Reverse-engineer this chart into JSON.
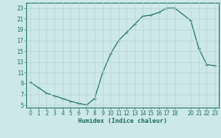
{
  "x": [
    0,
    1,
    2,
    3,
    4,
    5,
    6,
    7,
    8,
    9,
    10,
    11,
    12,
    13,
    14,
    15,
    16,
    17,
    18,
    20,
    21,
    22,
    23
  ],
  "y": [
    9.2,
    8.2,
    7.2,
    6.7,
    6.2,
    5.7,
    5.3,
    5.0,
    6.2,
    11.0,
    14.5,
    17.0,
    18.5,
    20.0,
    21.5,
    21.7,
    22.2,
    23.0,
    23.0,
    20.7,
    15.5,
    12.5,
    12.3
  ],
  "xlabel": "Humidex (Indice chaleur)",
  "line_color": "#1a6b5a",
  "bg_color": "#cce8ea",
  "grid_color": "#b8d4d6",
  "tick_color": "#1a6b5a",
  "spine_color": "#1a6b5a",
  "xlim": [
    -0.5,
    23.5
  ],
  "ylim": [
    4.5,
    24.0
  ],
  "yticks": [
    5,
    7,
    9,
    11,
    13,
    15,
    17,
    19,
    21,
    23
  ],
  "xticks": [
    0,
    1,
    2,
    3,
    4,
    5,
    6,
    7,
    8,
    9,
    10,
    11,
    12,
    13,
    14,
    15,
    16,
    17,
    18,
    20,
    21,
    22,
    23
  ]
}
